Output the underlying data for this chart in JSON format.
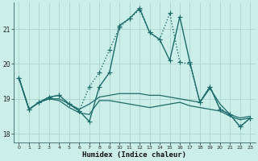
{
  "xlabel": "Humidex (Indice chaleur)",
  "background_color": "#cceee8",
  "grid_color": "#aad4cc",
  "line_color": "#1a6b6b",
  "xlim": [
    -0.5,
    23.5
  ],
  "ylim": [
    17.75,
    21.75
  ],
  "yticks": [
    18,
    19,
    20,
    21
  ],
  "xticks": [
    0,
    1,
    2,
    3,
    4,
    5,
    6,
    7,
    8,
    9,
    10,
    11,
    12,
    13,
    14,
    15,
    16,
    17,
    18,
    19,
    20,
    21,
    22,
    23
  ],
  "series": [
    {
      "x": [
        0,
        1,
        2,
        3,
        4,
        5,
        6,
        7,
        8,
        9,
        10,
        11,
        12,
        13,
        14,
        15,
        16,
        17,
        18,
        19,
        20,
        21,
        22,
        23
      ],
      "y": [
        19.6,
        18.7,
        18.9,
        19.05,
        19.1,
        18.85,
        18.65,
        19.35,
        19.75,
        20.4,
        21.05,
        21.3,
        21.55,
        20.9,
        20.7,
        21.45,
        20.05,
        20.0,
        18.9,
        19.35,
        18.7,
        18.55,
        18.2,
        18.45
      ],
      "style": ":",
      "marker": "+",
      "markersize": 4,
      "linewidth": 1.0
    },
    {
      "x": [
        0,
        1,
        2,
        3,
        4,
        5,
        6,
        7,
        8,
        9,
        10,
        11,
        12,
        13,
        14,
        15,
        16,
        17,
        18,
        19,
        20,
        21,
        22,
        23
      ],
      "y": [
        19.6,
        18.7,
        18.9,
        19.05,
        19.1,
        18.85,
        18.65,
        18.35,
        19.35,
        19.75,
        21.1,
        21.3,
        21.6,
        20.9,
        20.7,
        20.1,
        21.35,
        20.05,
        18.9,
        19.35,
        18.7,
        18.55,
        18.2,
        18.45
      ],
      "style": "-",
      "marker": "+",
      "markersize": 4,
      "linewidth": 1.0
    },
    {
      "x": [
        0,
        1,
        2,
        3,
        4,
        5,
        6,
        7,
        8,
        9,
        10,
        11,
        12,
        13,
        14,
        15,
        16,
        17,
        18,
        19,
        20,
        21,
        22,
        23
      ],
      "y": [
        19.6,
        18.7,
        18.9,
        19.0,
        19.0,
        18.85,
        18.7,
        18.85,
        19.05,
        19.1,
        19.15,
        19.15,
        19.15,
        19.1,
        19.1,
        19.05,
        19.0,
        18.95,
        18.9,
        19.3,
        18.85,
        18.55,
        18.45,
        18.5
      ],
      "style": "-",
      "marker": null,
      "linewidth": 0.9
    },
    {
      "x": [
        0,
        1,
        2,
        3,
        4,
        5,
        6,
        7,
        8,
        9,
        10,
        11,
        12,
        13,
        14,
        15,
        16,
        17,
        18,
        19,
        20,
        21,
        22,
        23
      ],
      "y": [
        19.6,
        18.7,
        18.9,
        19.0,
        18.95,
        18.75,
        18.6,
        18.55,
        18.95,
        18.95,
        18.9,
        18.85,
        18.8,
        18.75,
        18.8,
        18.85,
        18.9,
        18.8,
        18.75,
        18.7,
        18.65,
        18.5,
        18.4,
        18.45
      ],
      "style": "-",
      "marker": null,
      "linewidth": 0.9
    }
  ]
}
